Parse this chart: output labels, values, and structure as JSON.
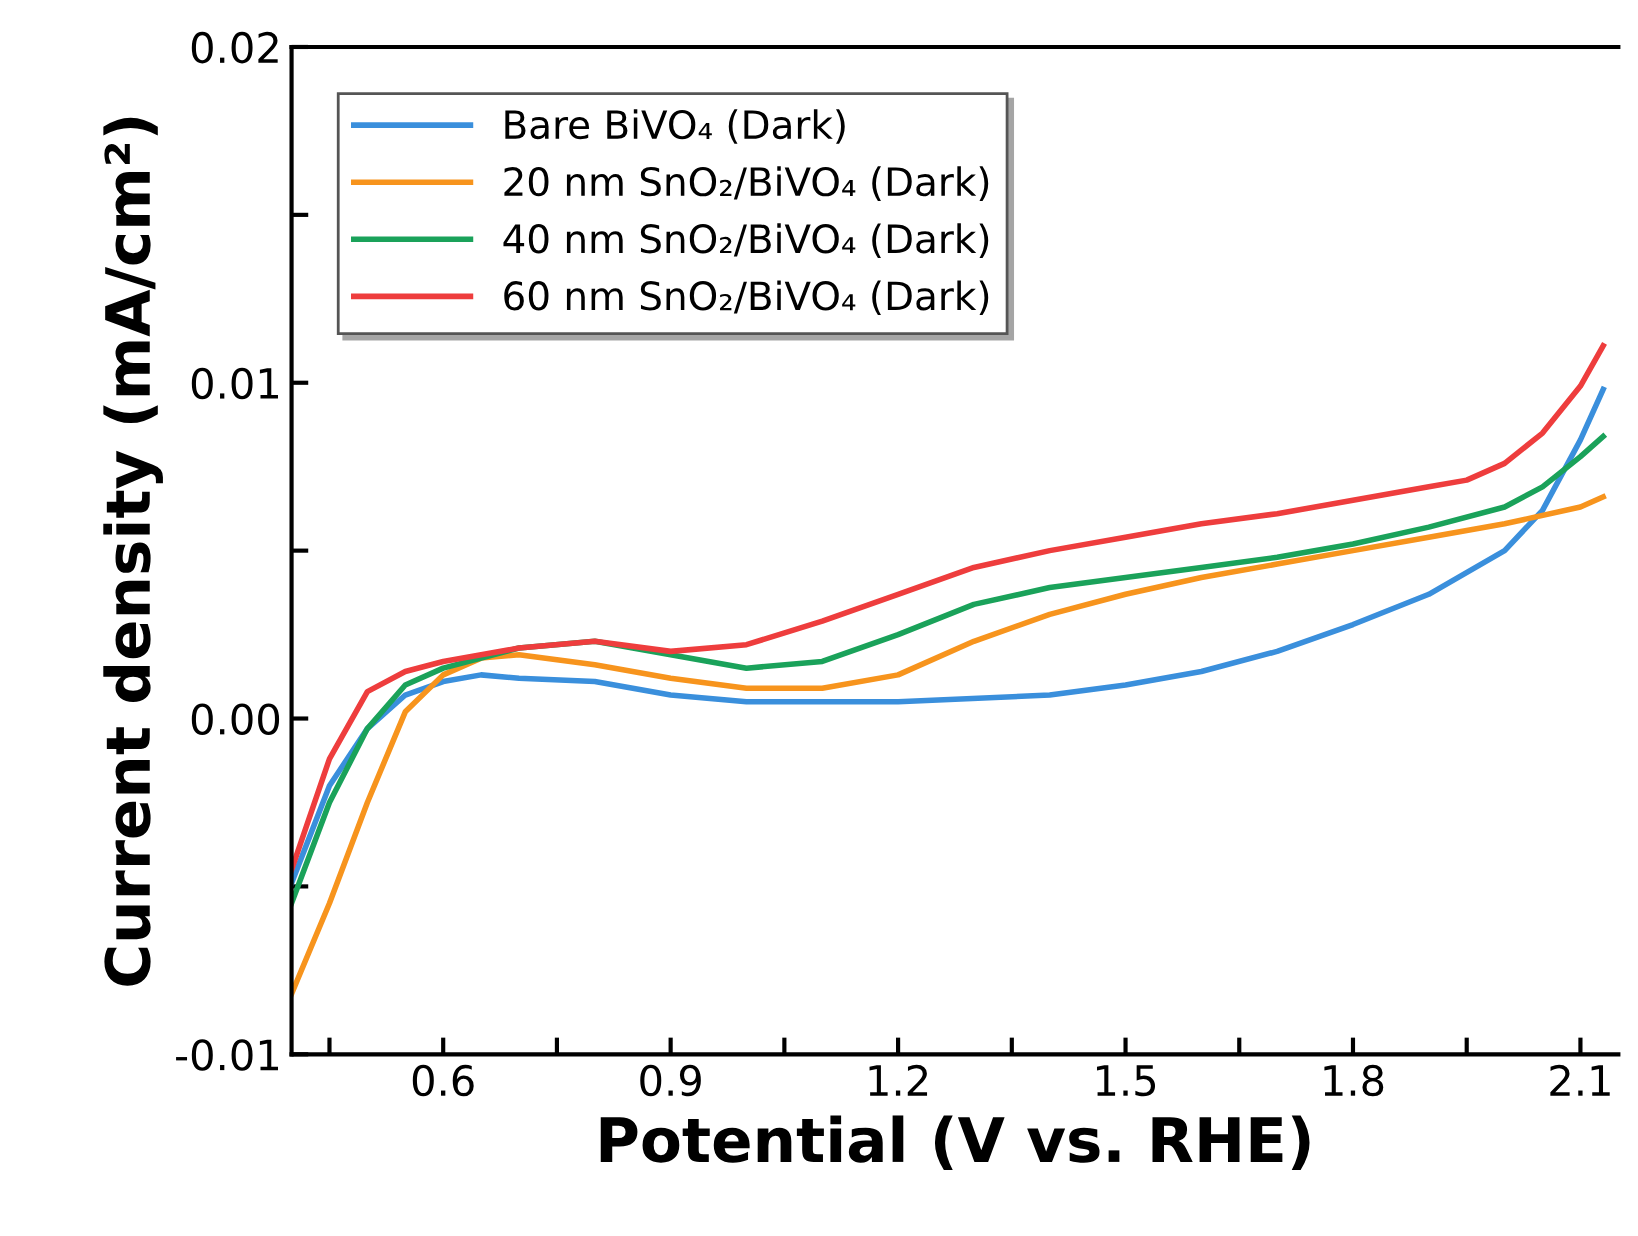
{
  "chart_data": {
    "type": "line",
    "xlabel": "Potential (V vs. RHE)",
    "ylabel": "Current density (mA/cm²)",
    "xlim": [
      0.4,
      2.15
    ],
    "ylim": [
      -0.01,
      0.02
    ],
    "xticks": [
      {
        "value": 0.45,
        "label": null
      },
      0.6,
      {
        "value": 0.75,
        "label": null
      },
      0.9,
      {
        "value": 1.05,
        "label": null
      },
      1.2,
      {
        "value": 1.35,
        "label": null
      },
      1.5,
      {
        "value": 1.65,
        "label": null
      },
      1.8,
      {
        "value": 1.95,
        "label": null
      },
      2.1
    ],
    "yticks": [
      {
        "value": -0.01,
        "label": "-0.01"
      },
      {
        "value": -0.005,
        "label": null
      },
      {
        "value": 0.0,
        "label": "0.00"
      },
      {
        "value": 0.005,
        "label": null
      },
      {
        "value": 0.01,
        "label": "0.01"
      },
      {
        "value": 0.015,
        "label": null
      },
      {
        "value": 0.02,
        "label": "0.02"
      }
    ],
    "grid": false,
    "legend": "top left",
    "marker": "none",
    "line_style": "solid",
    "series": [
      {
        "name": "Bare BiVO₄ (Dark)",
        "color": "#3a8fdc",
        "x": [
          0.4,
          0.45,
          0.5,
          0.55,
          0.6,
          0.65,
          0.7,
          0.8,
          0.9,
          1.0,
          1.2,
          1.4,
          1.5,
          1.6,
          1.7,
          1.8,
          1.9,
          2.0,
          2.05,
          2.1,
          2.13
        ],
        "values": [
          -0.0049,
          -0.002,
          -0.0003,
          0.0007,
          0.0011,
          0.0013,
          0.0012,
          0.0011,
          0.0007,
          0.0005,
          0.0005,
          0.0007,
          0.001,
          0.0014,
          0.002,
          0.0028,
          0.0037,
          0.005,
          0.0062,
          0.0083,
          0.0098
        ]
      },
      {
        "name": "20 nm SnO₂/BiVO₄ (Dark)",
        "color": "#f7941d",
        "x": [
          0.4,
          0.45,
          0.5,
          0.55,
          0.6,
          0.65,
          0.7,
          0.8,
          0.9,
          1.0,
          1.1,
          1.2,
          1.3,
          1.4,
          1.5,
          1.6,
          1.7,
          1.8,
          1.9,
          2.0,
          2.1,
          2.13
        ],
        "values": [
          -0.0082,
          -0.0055,
          -0.0025,
          0.0002,
          0.0013,
          0.0018,
          0.0019,
          0.0016,
          0.0012,
          0.0009,
          0.0009,
          0.0013,
          0.0023,
          0.0031,
          0.0037,
          0.0042,
          0.0046,
          0.005,
          0.0054,
          0.0058,
          0.0063,
          0.0066
        ]
      },
      {
        "name": "40 nm SnO₂/BiVO₄ (Dark)",
        "color": "#1aa25a",
        "x": [
          0.4,
          0.45,
          0.5,
          0.55,
          0.6,
          0.65,
          0.7,
          0.8,
          0.9,
          1.0,
          1.1,
          1.2,
          1.3,
          1.4,
          1.5,
          1.6,
          1.7,
          1.8,
          1.9,
          2.0,
          2.05,
          2.1,
          2.13
        ],
        "values": [
          -0.0055,
          -0.0025,
          -0.0003,
          0.001,
          0.0015,
          0.0018,
          0.0021,
          0.0023,
          0.0019,
          0.0015,
          0.0017,
          0.0025,
          0.0034,
          0.0039,
          0.0042,
          0.0045,
          0.0048,
          0.0052,
          0.0057,
          0.0063,
          0.0069,
          0.0078,
          0.0084
        ]
      },
      {
        "name": "60 nm SnO₂/BiVO₄ (Dark)",
        "color": "#ee3d3d",
        "x": [
          0.4,
          0.45,
          0.5,
          0.55,
          0.6,
          0.65,
          0.7,
          0.8,
          0.9,
          1.0,
          1.1,
          1.2,
          1.3,
          1.4,
          1.5,
          1.6,
          1.7,
          1.8,
          1.9,
          1.95,
          2.0,
          2.05,
          2.1,
          2.13
        ],
        "values": [
          -0.0045,
          -0.0012,
          0.0008,
          0.0014,
          0.0017,
          0.0019,
          0.0021,
          0.0023,
          0.002,
          0.0022,
          0.0029,
          0.0037,
          0.0045,
          0.005,
          0.0054,
          0.0058,
          0.0061,
          0.0065,
          0.0069,
          0.0071,
          0.0076,
          0.0085,
          0.0099,
          0.0111
        ]
      }
    ]
  }
}
